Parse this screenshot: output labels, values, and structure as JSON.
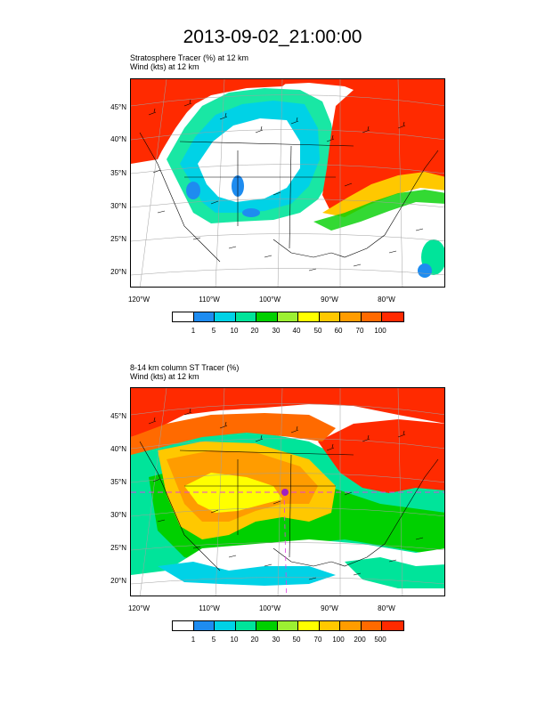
{
  "title": "2013-09-02_21:00:00",
  "panel1": {
    "line1": "Stratosphere Tracer   (%)     at   12 km",
    "line2": "Wind   (kts)     at   12 km",
    "colorbar_labels": [
      "1",
      "5",
      "10",
      "20",
      "30",
      "40",
      "50",
      "60",
      "70",
      "100"
    ]
  },
  "panel2": {
    "line1": "8-14 km column ST Tracer   (%)",
    "line2": "Wind   (kts)     at   12 km",
    "colorbar_labels": [
      "1",
      "5",
      "10",
      "20",
      "30",
      "50",
      "70",
      "100",
      "200",
      "500"
    ]
  },
  "lat_labels": [
    "45°N",
    "40°N",
    "35°N",
    "30°N",
    "25°N",
    "20°N"
  ],
  "lon_labels": [
    "120°W",
    "110°W",
    "100°W",
    "90°W",
    "80°W"
  ],
  "colors": [
    "#ffffff",
    "#1e8cf0",
    "#00d2e6",
    "#00e49a",
    "#00d000",
    "#9cf032",
    "#ffff00",
    "#ffc800",
    "#ff9c00",
    "#ff6a00",
    "#ff2a00"
  ]
}
